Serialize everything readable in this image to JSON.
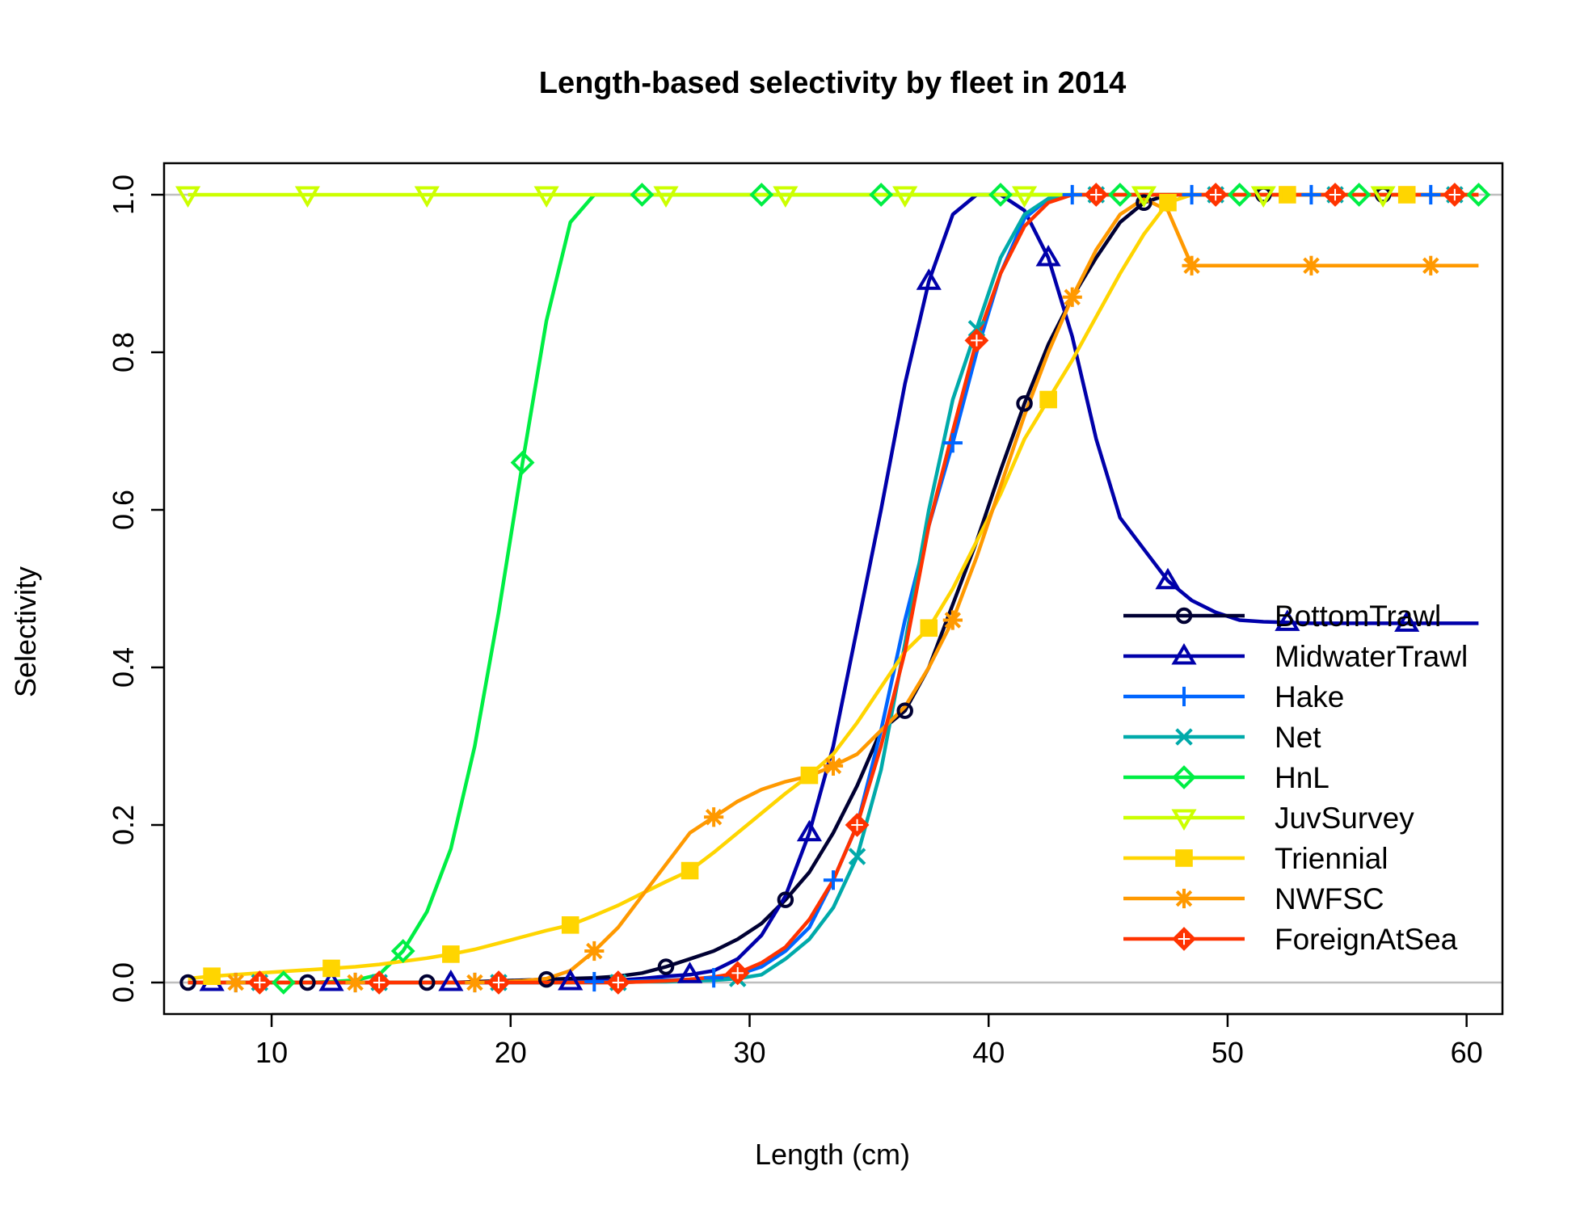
{
  "chart_data": {
    "type": "line",
    "title": "Length-based selectivity by fleet in 2014",
    "xlabel": "Length (cm)",
    "ylabel": "Selectivity",
    "xlim": [
      5.5,
      61.5
    ],
    "ylim": [
      -0.04,
      1.04
    ],
    "x_ticks": [
      10,
      20,
      30,
      40,
      50,
      60
    ],
    "y_ticks": [
      0.0,
      0.2,
      0.4,
      0.6,
      0.8,
      1.0
    ],
    "x_tick_labels": [
      "10",
      "20",
      "30",
      "40",
      "50",
      "60"
    ],
    "y_tick_labels": [
      "0.0",
      "0.2",
      "0.4",
      "0.6",
      "0.8",
      "1.0"
    ],
    "hlines": [
      0,
      1
    ],
    "hline_color": "#BEBEBE",
    "grid": false,
    "legend_position": "bottom-right",
    "x": [
      6.5,
      7.5,
      8.5,
      9.5,
      10.5,
      11.5,
      12.5,
      13.5,
      14.5,
      15.5,
      16.5,
      17.5,
      18.5,
      19.5,
      20.5,
      21.5,
      22.5,
      23.5,
      24.5,
      25.5,
      26.5,
      27.5,
      28.5,
      29.5,
      30.5,
      31.5,
      32.5,
      33.5,
      34.5,
      35.5,
      36.5,
      37.5,
      38.5,
      39.5,
      40.5,
      41.5,
      42.5,
      43.5,
      44.5,
      45.5,
      46.5,
      47.5,
      48.5,
      49.5,
      50.5,
      51.5,
      52.5,
      53.5,
      54.5,
      55.5,
      56.5,
      57.5,
      58.5,
      59.5,
      60.5
    ],
    "series": [
      {
        "name": "BottomTrawl",
        "color": "#000033",
        "marker": "circle",
        "marker_start": 0,
        "values": [
          0,
          0,
          0,
          0,
          0,
          0,
          0,
          0,
          0,
          0,
          0,
          0,
          0.001,
          0.002,
          0.003,
          0.004,
          0.005,
          0.006,
          0.008,
          0.012,
          0.02,
          0.03,
          0.04,
          0.055,
          0.075,
          0.105,
          0.14,
          0.19,
          0.25,
          0.32,
          0.345,
          0.4,
          0.48,
          0.56,
          0.65,
          0.735,
          0.81,
          0.87,
          0.92,
          0.965,
          0.99,
          1,
          1,
          1,
          1,
          1,
          1,
          1,
          1,
          1,
          1,
          1,
          1,
          1,
          1
        ]
      },
      {
        "name": "MidwaterTrawl",
        "color": "#0000AA",
        "marker": "triangle",
        "marker_start": 1,
        "values": [
          0,
          0,
          0,
          0,
          0,
          0,
          0,
          0,
          0,
          0,
          0,
          0,
          0,
          0,
          0,
          0,
          0.001,
          0.002,
          0.003,
          0.005,
          0.008,
          0.01,
          0.015,
          0.03,
          0.06,
          0.11,
          0.19,
          0.3,
          0.45,
          0.6,
          0.76,
          0.89,
          0.975,
          1,
          1,
          0.98,
          0.92,
          0.82,
          0.69,
          0.59,
          0.55,
          0.51,
          0.485,
          0.47,
          0.46,
          0.458,
          0.457,
          0.456,
          0.456,
          0.456,
          0.456,
          0.456,
          0.456,
          0.456,
          0.456
        ]
      },
      {
        "name": "Hake",
        "color": "#0066FF",
        "marker": "plus",
        "marker_start": 2,
        "values": [
          0,
          0,
          0,
          0,
          0,
          0,
          0,
          0,
          0,
          0,
          0,
          0,
          0,
          0,
          0,
          0,
          0,
          0.001,
          0.001,
          0.002,
          0.003,
          0.004,
          0.006,
          0.01,
          0.02,
          0.04,
          0.07,
          0.13,
          0.2,
          0.32,
          0.46,
          0.58,
          0.685,
          0.8,
          0.9,
          0.97,
          0.995,
          1,
          1,
          1,
          1,
          1,
          1,
          1,
          1,
          1,
          1,
          1,
          1,
          1,
          1,
          1,
          1,
          1,
          1
        ]
      },
      {
        "name": "Net",
        "color": "#00AAAA",
        "marker": "cross",
        "marker_start": 3,
        "values": [
          0,
          0,
          0,
          0,
          0,
          0,
          0,
          0,
          0,
          0,
          0,
          0,
          0,
          0,
          0,
          0,
          0,
          0,
          0,
          0.001,
          0.001,
          0.002,
          0.003,
          0.005,
          0.01,
          0.03,
          0.055,
          0.095,
          0.16,
          0.27,
          0.43,
          0.6,
          0.74,
          0.83,
          0.92,
          0.975,
          0.995,
          1,
          1,
          1,
          1,
          1,
          1,
          1,
          1,
          1,
          1,
          1,
          1,
          1,
          1,
          1,
          1,
          1,
          1
        ]
      },
      {
        "name": "HnL",
        "color": "#00EE44",
        "marker": "diamond",
        "marker_start": 4,
        "values": [
          0,
          0,
          0,
          0,
          0,
          0,
          0.001,
          0.003,
          0.01,
          0.04,
          0.09,
          0.17,
          0.3,
          0.47,
          0.66,
          0.84,
          0.965,
          1,
          1,
          1,
          1,
          1,
          1,
          1,
          1,
          1,
          1,
          1,
          1,
          1,
          1,
          1,
          1,
          1,
          1,
          1,
          1,
          1,
          1,
          1,
          1,
          1,
          1,
          1,
          1,
          1,
          1,
          1,
          1,
          1,
          1,
          1,
          1,
          1,
          1
        ]
      },
      {
        "name": "JuvSurvey",
        "color": "#CCFF00",
        "marker": "down-triangle",
        "marker_start": 0,
        "values": [
          1,
          1,
          1,
          1,
          1,
          1,
          1,
          1,
          1,
          1,
          1,
          1,
          1,
          1,
          1,
          1,
          1,
          1,
          1,
          1,
          1,
          1,
          1,
          1,
          1,
          1,
          1,
          1,
          1,
          1,
          1,
          1,
          1,
          1,
          1,
          1,
          1,
          1,
          1,
          1,
          1,
          1,
          1,
          1,
          1,
          1,
          1,
          1,
          1,
          1,
          1,
          1,
          1,
          1,
          1
        ]
      },
      {
        "name": "Triennial",
        "color": "#FFD500",
        "marker": "square",
        "marker_start": 1,
        "values": [
          0.005,
          0.008,
          0.01,
          0.012,
          0.014,
          0.016,
          0.018,
          0.02,
          0.023,
          0.027,
          0.031,
          0.036,
          0.042,
          0.05,
          0.058,
          0.066,
          0.073,
          0.085,
          0.098,
          0.113,
          0.128,
          0.142,
          0.165,
          0.19,
          0.215,
          0.24,
          0.263,
          0.29,
          0.33,
          0.375,
          0.42,
          0.45,
          0.5,
          0.56,
          0.62,
          0.69,
          0.74,
          0.79,
          0.845,
          0.9,
          0.95,
          0.99,
          1,
          1,
          1,
          1,
          1,
          1,
          1,
          1,
          1,
          1,
          1,
          1,
          1
        ]
      },
      {
        "name": "NWFSC",
        "color": "#FF9900",
        "marker": "star",
        "marker_start": 2,
        "values": [
          0,
          0,
          0,
          0,
          0,
          0,
          0,
          0,
          0,
          0,
          0,
          0,
          0,
          0.001,
          0.002,
          0.005,
          0.015,
          0.04,
          0.07,
          0.11,
          0.15,
          0.19,
          0.21,
          0.23,
          0.245,
          0.255,
          0.262,
          0.275,
          0.29,
          0.32,
          0.35,
          0.4,
          0.46,
          0.54,
          0.63,
          0.72,
          0.8,
          0.87,
          0.93,
          0.975,
          0.995,
          0.98,
          0.91,
          0.91,
          0.91,
          0.91,
          0.91,
          0.91,
          0.91,
          0.91,
          0.91,
          0.91,
          0.91,
          0.91,
          0.91
        ]
      },
      {
        "name": "ForeignAtSea",
        "color": "#FF3300",
        "marker": "diamond-plus",
        "marker_start": 3,
        "values": [
          0,
          0,
          0,
          0,
          0,
          0,
          0,
          0,
          0,
          0,
          0,
          0,
          0,
          0,
          0,
          0,
          0,
          0,
          0,
          0.001,
          0.002,
          0.004,
          0.007,
          0.012,
          0.025,
          0.045,
          0.08,
          0.13,
          0.2,
          0.3,
          0.42,
          0.58,
          0.7,
          0.815,
          0.9,
          0.96,
          0.99,
          1,
          1,
          1,
          1,
          1,
          1,
          1,
          1,
          1,
          1,
          1,
          1,
          1,
          1,
          1,
          1,
          1,
          1
        ]
      }
    ]
  }
}
